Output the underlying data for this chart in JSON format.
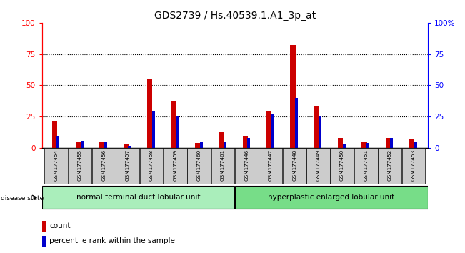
{
  "title": "GDS2739 / Hs.40539.1.A1_3p_at",
  "samples": [
    "GSM177454",
    "GSM177455",
    "GSM177456",
    "GSM177457",
    "GSM177458",
    "GSM177459",
    "GSM177460",
    "GSM177461",
    "GSM177446",
    "GSM177447",
    "GSM177448",
    "GSM177449",
    "GSM177450",
    "GSM177451",
    "GSM177452",
    "GSM177453"
  ],
  "count_values": [
    22,
    5,
    5,
    3,
    55,
    37,
    4,
    13,
    10,
    29,
    82,
    33,
    8,
    5,
    8,
    7
  ],
  "percentile_values": [
    10,
    6,
    5,
    2,
    29,
    25,
    5,
    5,
    8,
    27,
    40,
    26,
    3,
    4,
    8,
    5
  ],
  "group1_label": "normal terminal duct lobular unit",
  "group2_label": "hyperplastic enlarged lobular unit",
  "group1_count": 8,
  "group2_count": 8,
  "disease_state_label": "disease state",
  "legend_count": "count",
  "legend_percentile": "percentile rank within the sample",
  "red_color": "#cc0000",
  "blue_color": "#0000cc",
  "group1_bg": "#aaeebb",
  "group2_bg": "#77dd88",
  "bar_bg": "#cccccc",
  "ylim": [
    0,
    100
  ],
  "yticks": [
    0,
    25,
    50,
    75,
    100
  ],
  "red_bar_width": 0.22,
  "blue_bar_width": 0.12
}
